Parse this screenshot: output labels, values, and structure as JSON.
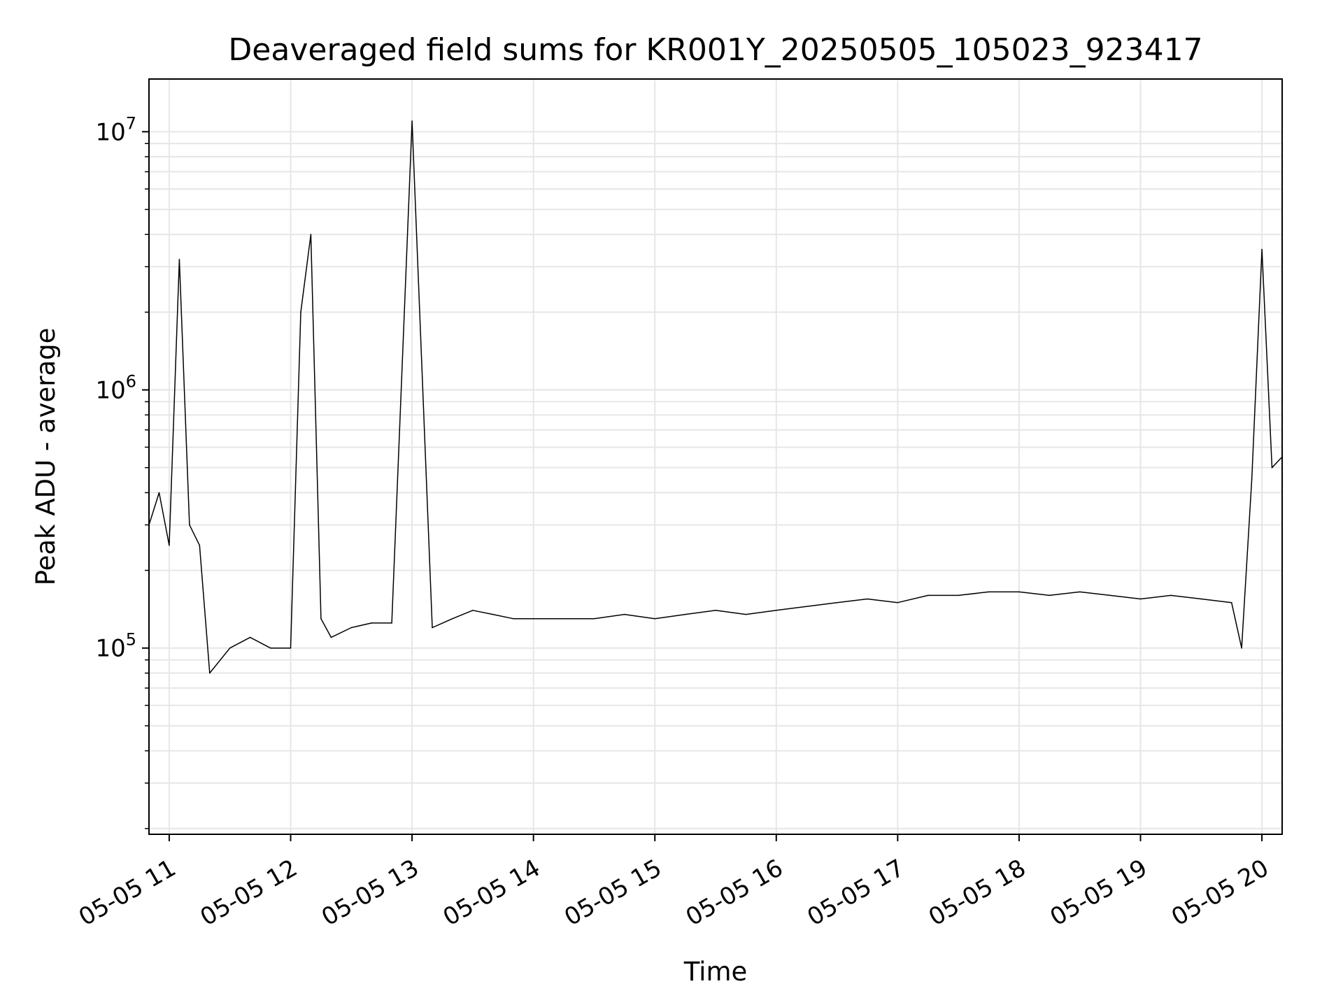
{
  "chart_data": {
    "type": "line",
    "title": "Deaveraged field sums for KR001Y_20250505_105023_923417",
    "xlabel": "Time",
    "ylabel": "Peak ADU - average",
    "yscale": "log",
    "ylim": [
      19000,
      16000000
    ],
    "xlim": [
      "2025-05-05 10:50",
      "2025-05-05 20:10"
    ],
    "x_tick_labels": [
      "05-05 11",
      "05-05 12",
      "05-05 13",
      "05-05 14",
      "05-05 15",
      "05-05 16",
      "05-05 17",
      "05-05 18",
      "05-05 19",
      "05-05 20"
    ],
    "y_tick_labels": [
      {
        "base": "10",
        "exp": "5",
        "value": 100000
      },
      {
        "base": "10",
        "exp": "6",
        "value": 1000000
      },
      {
        "base": "10",
        "exp": "7",
        "value": 10000000
      }
    ],
    "grid": true,
    "line_color": "#000000",
    "series": [
      {
        "x": [
          "2025-05-05 10:50",
          "2025-05-05 10:55",
          "2025-05-05 11:00",
          "2025-05-05 11:05",
          "2025-05-05 11:10",
          "2025-05-05 11:15",
          "2025-05-05 11:20",
          "2025-05-05 11:30",
          "2025-05-05 11:40",
          "2025-05-05 11:50",
          "2025-05-05 12:00",
          "2025-05-05 12:05",
          "2025-05-05 12:10",
          "2025-05-05 12:15",
          "2025-05-05 12:20",
          "2025-05-05 12:30",
          "2025-05-05 12:40",
          "2025-05-05 12:50",
          "2025-05-05 13:00",
          "2025-05-05 13:10",
          "2025-05-05 13:20",
          "2025-05-05 13:30",
          "2025-05-05 13:40",
          "2025-05-05 13:50",
          "2025-05-05 14:00",
          "2025-05-05 14:15",
          "2025-05-05 14:30",
          "2025-05-05 14:45",
          "2025-05-05 15:00",
          "2025-05-05 15:15",
          "2025-05-05 15:30",
          "2025-05-05 15:45",
          "2025-05-05 16:00",
          "2025-05-05 16:15",
          "2025-05-05 16:30",
          "2025-05-05 16:45",
          "2025-05-05 17:00",
          "2025-05-05 17:15",
          "2025-05-05 17:30",
          "2025-05-05 17:45",
          "2025-05-05 18:00",
          "2025-05-05 18:15",
          "2025-05-05 18:30",
          "2025-05-05 18:45",
          "2025-05-05 19:00",
          "2025-05-05 19:15",
          "2025-05-05 19:30",
          "2025-05-05 19:45",
          "2025-05-05 19:50",
          "2025-05-05 19:55",
          "2025-05-05 20:00",
          "2025-05-05 20:05",
          "2025-05-05 20:10"
        ],
        "values": [
          300000,
          400000,
          250000,
          3200000,
          300000,
          250000,
          80000,
          100000,
          110000,
          100000,
          100000,
          2000000,
          4000000,
          130000,
          110000,
          120000,
          125000,
          125000,
          11000000,
          120000,
          130000,
          140000,
          135000,
          130000,
          130000,
          130000,
          130000,
          135000,
          130000,
          135000,
          140000,
          135000,
          140000,
          145000,
          150000,
          155000,
          150000,
          160000,
          160000,
          165000,
          165000,
          160000,
          165000,
          160000,
          155000,
          160000,
          155000,
          150000,
          100000,
          450000,
          3500000,
          500000,
          550000
        ]
      }
    ]
  }
}
